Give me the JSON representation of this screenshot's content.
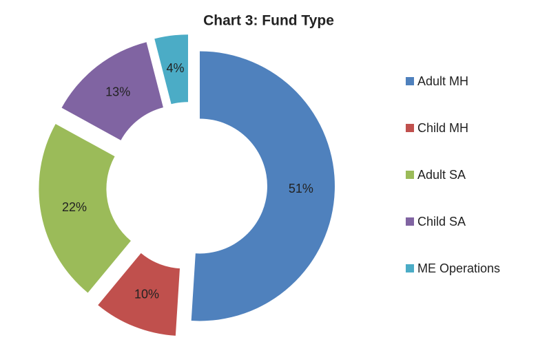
{
  "chart_data": {
    "type": "donut",
    "title": "Chart 3: Fund Type",
    "categories": [
      "Adult MH",
      "Child MH",
      "Adult SA",
      "Child SA",
      "ME Operations"
    ],
    "values": [
      51,
      10,
      22,
      13,
      4
    ],
    "value_labels": [
      "51%",
      "10%",
      "22%",
      "13%",
      "4%"
    ],
    "colors": [
      "#4f81bd",
      "#c0504d",
      "#9bbb59",
      "#8064a2",
      "#4bacc6"
    ],
    "legend": "right"
  }
}
